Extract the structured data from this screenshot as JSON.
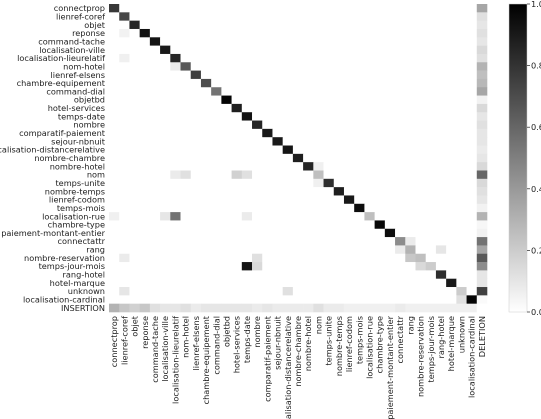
{
  "chart_data": {
    "type": "heatmap",
    "rows": [
      "connectprop",
      "lienref-coref",
      "objet",
      "reponse",
      "command-tache",
      "localisation-ville",
      "localisation-lieurelatif",
      "nom-hotel",
      "lienref-elsens",
      "chambre-equipement",
      "command-dial",
      "objetbd",
      "hotel-services",
      "temps-date",
      "nombre",
      "comparatif-paiement",
      "sejour-nbnuit",
      "localisation-distancerelative",
      "nombre-chambre",
      "nombre-hotel",
      "nom",
      "temps-unite",
      "nombre-temps",
      "lienref-codom",
      "temps-mois",
      "localisation-rue",
      "chambre-type",
      "paiement-montant-entier",
      "connectattr",
      "rang",
      "nombre-reservation",
      "temps-jour-mois",
      "rang-hotel",
      "hotel-marque",
      "unknown",
      "localisation-cardinal",
      "INSERTION"
    ],
    "columns": [
      "connectprop",
      "lienref-coref",
      "objet",
      "reponse",
      "command-tache",
      "localisation-ville",
      "localisation-lieurelatif",
      "nom-hotel",
      "lienref-elsens",
      "chambre-equipement",
      "command-dial",
      "objetbd",
      "hotel-services",
      "temps-date",
      "nombre",
      "comparatif-paiement",
      "sejour-nbnuit",
      "localisation-distancerelative",
      "nombre-chambre",
      "nombre-hotel",
      "nom",
      "temps-unite",
      "nombre-temps",
      "lienref-codom",
      "temps-mois",
      "localisation-rue",
      "chambre-type",
      "paiement-montant-entier",
      "connectattr",
      "rang",
      "nombre-reservation",
      "temps-jour-mois",
      "rang-hotel",
      "hotel-marque",
      "unknown",
      "localisation-cardinal",
      "DELETION"
    ],
    "diagonal": [
      0.78,
      0.72,
      0.85,
      0.93,
      0.92,
      0.9,
      0.85,
      0.65,
      0.75,
      0.7,
      0.55,
      0.98,
      0.88,
      0.93,
      0.85,
      0.9,
      0.9,
      0.92,
      0.88,
      0.85,
      0.25,
      0.82,
      0.88,
      0.9,
      0.95,
      0.25,
      0.97,
      0.95,
      0.45,
      0.3,
      0.25,
      0.2,
      0.82,
      0.9,
      0.2,
      0.98
    ],
    "deletion": [
      0.35,
      0.12,
      0.1,
      0.12,
      0.1,
      0.15,
      0.12,
      0.3,
      0.25,
      0.28,
      0.35,
      0.05,
      0.15,
      0.1,
      0.12,
      0.1,
      0.1,
      0.08,
      0.1,
      0.15,
      0.6,
      0.15,
      0.12,
      0.1,
      0.05,
      0.3,
      0.03,
      0.05,
      0.55,
      0.35,
      0.65,
      0.45,
      0.1,
      0.1,
      0.75,
      0.02
    ],
    "insertion": [
      0.3,
      0.22,
      0.18,
      0.22,
      0.12,
      0.1,
      0.1,
      0.12,
      0.08,
      0.1,
      0.1,
      0.1,
      0.1,
      0.1,
      0.08,
      0.1,
      0.08,
      0.08,
      0.08,
      0.08,
      0.12,
      0.08,
      0.08,
      0.06,
      0.06,
      0.06,
      0.06,
      0.06,
      0.08,
      0.06,
      0.06,
      0.06,
      0.06,
      0.06,
      0.06,
      0.06
    ],
    "off_diagonal": [
      [
        20,
        12,
        0.18
      ],
      [
        20,
        13,
        0.12
      ],
      [
        20,
        7,
        0.12
      ],
      [
        20,
        6,
        0.08
      ],
      [
        25,
        6,
        0.55
      ],
      [
        25,
        5,
        0.1
      ],
      [
        25,
        0,
        0.06
      ],
      [
        25,
        13,
        0.08
      ],
      [
        31,
        13,
        0.92
      ],
      [
        31,
        14,
        0.15
      ],
      [
        31,
        30,
        0.15
      ],
      [
        30,
        14,
        0.12
      ],
      [
        30,
        1,
        0.08
      ],
      [
        30,
        29,
        0.22
      ],
      [
        29,
        28,
        0.08
      ],
      [
        29,
        32,
        0.1
      ],
      [
        34,
        1,
        0.1
      ],
      [
        34,
        17,
        0.12
      ],
      [
        35,
        34,
        0.12
      ],
      [
        6,
        1,
        0.06
      ],
      [
        7,
        6,
        0.08
      ],
      [
        3,
        1,
        0.05
      ],
      [
        28,
        29,
        0.08
      ],
      [
        21,
        20,
        0.06
      ],
      [
        19,
        20,
        0.06
      ]
    ],
    "colorbar": {
      "min": 0.0,
      "max": 1.0,
      "ticks": [
        "0.0",
        "0.2",
        "0.4",
        "0.6",
        "0.8",
        "1.0"
      ]
    }
  }
}
